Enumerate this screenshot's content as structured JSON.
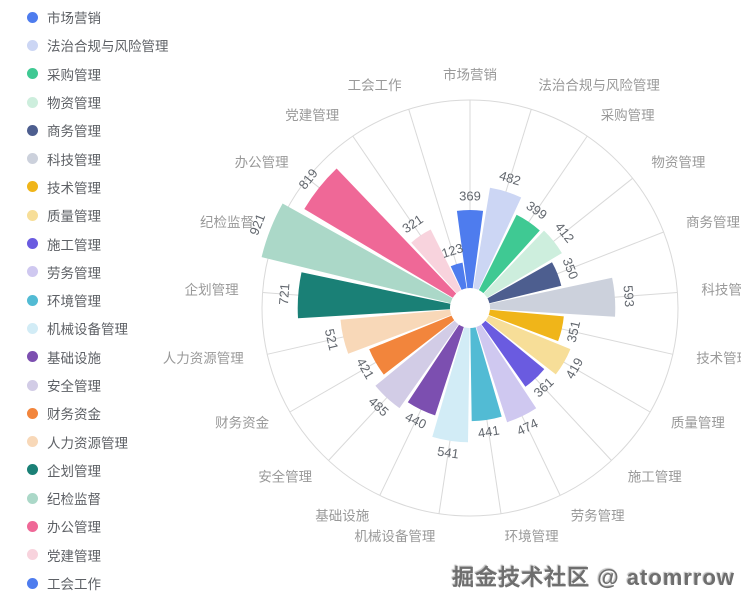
{
  "watermark": "掘金技术社区 @ atomrrow",
  "chart_data": {
    "type": "bar",
    "variant": "nightingale-rose-polar",
    "title": "",
    "legend_position": "left",
    "label_rotation": "tangential",
    "grid": "polar-spokes-and-outer-ring",
    "categories": [
      "市场营销",
      "法治合规与风险管理",
      "采购管理",
      "物资管理",
      "商务管理",
      "科技管理",
      "技术管理",
      "质量管理",
      "施工管理",
      "劳务管理",
      "环境管理",
      "机械设备管理",
      "基础设施",
      "安全管理",
      "财务资金",
      "人力资源管理",
      "企划管理",
      "纪检监督",
      "办公管理",
      "党建管理",
      "工会工作"
    ],
    "values": [
      369,
      482,
      399,
      412,
      350,
      593,
      351,
      419,
      361,
      474,
      441,
      541,
      440,
      485,
      421,
      521,
      721,
      921,
      819,
      321,
      123
    ],
    "colors": [
      "#4e7cee",
      "#ccd6f4",
      "#3fc993",
      "#cdeedd",
      "#4d5e8f",
      "#ccd1dc",
      "#f0b519",
      "#f7de98",
      "#6a5be0",
      "#cfc8f0",
      "#52bbd4",
      "#d2ecf6",
      "#7c4fb0",
      "#d2cce6",
      "#f2853c",
      "#f8d8b8",
      "#1a8076",
      "#abd8c8",
      "#ef6897",
      "#f8d3dd",
      "#4e7cee"
    ],
    "axis_ring_value": 890,
    "value_min": 0,
    "grid_line_color": "#d9d9d9"
  }
}
